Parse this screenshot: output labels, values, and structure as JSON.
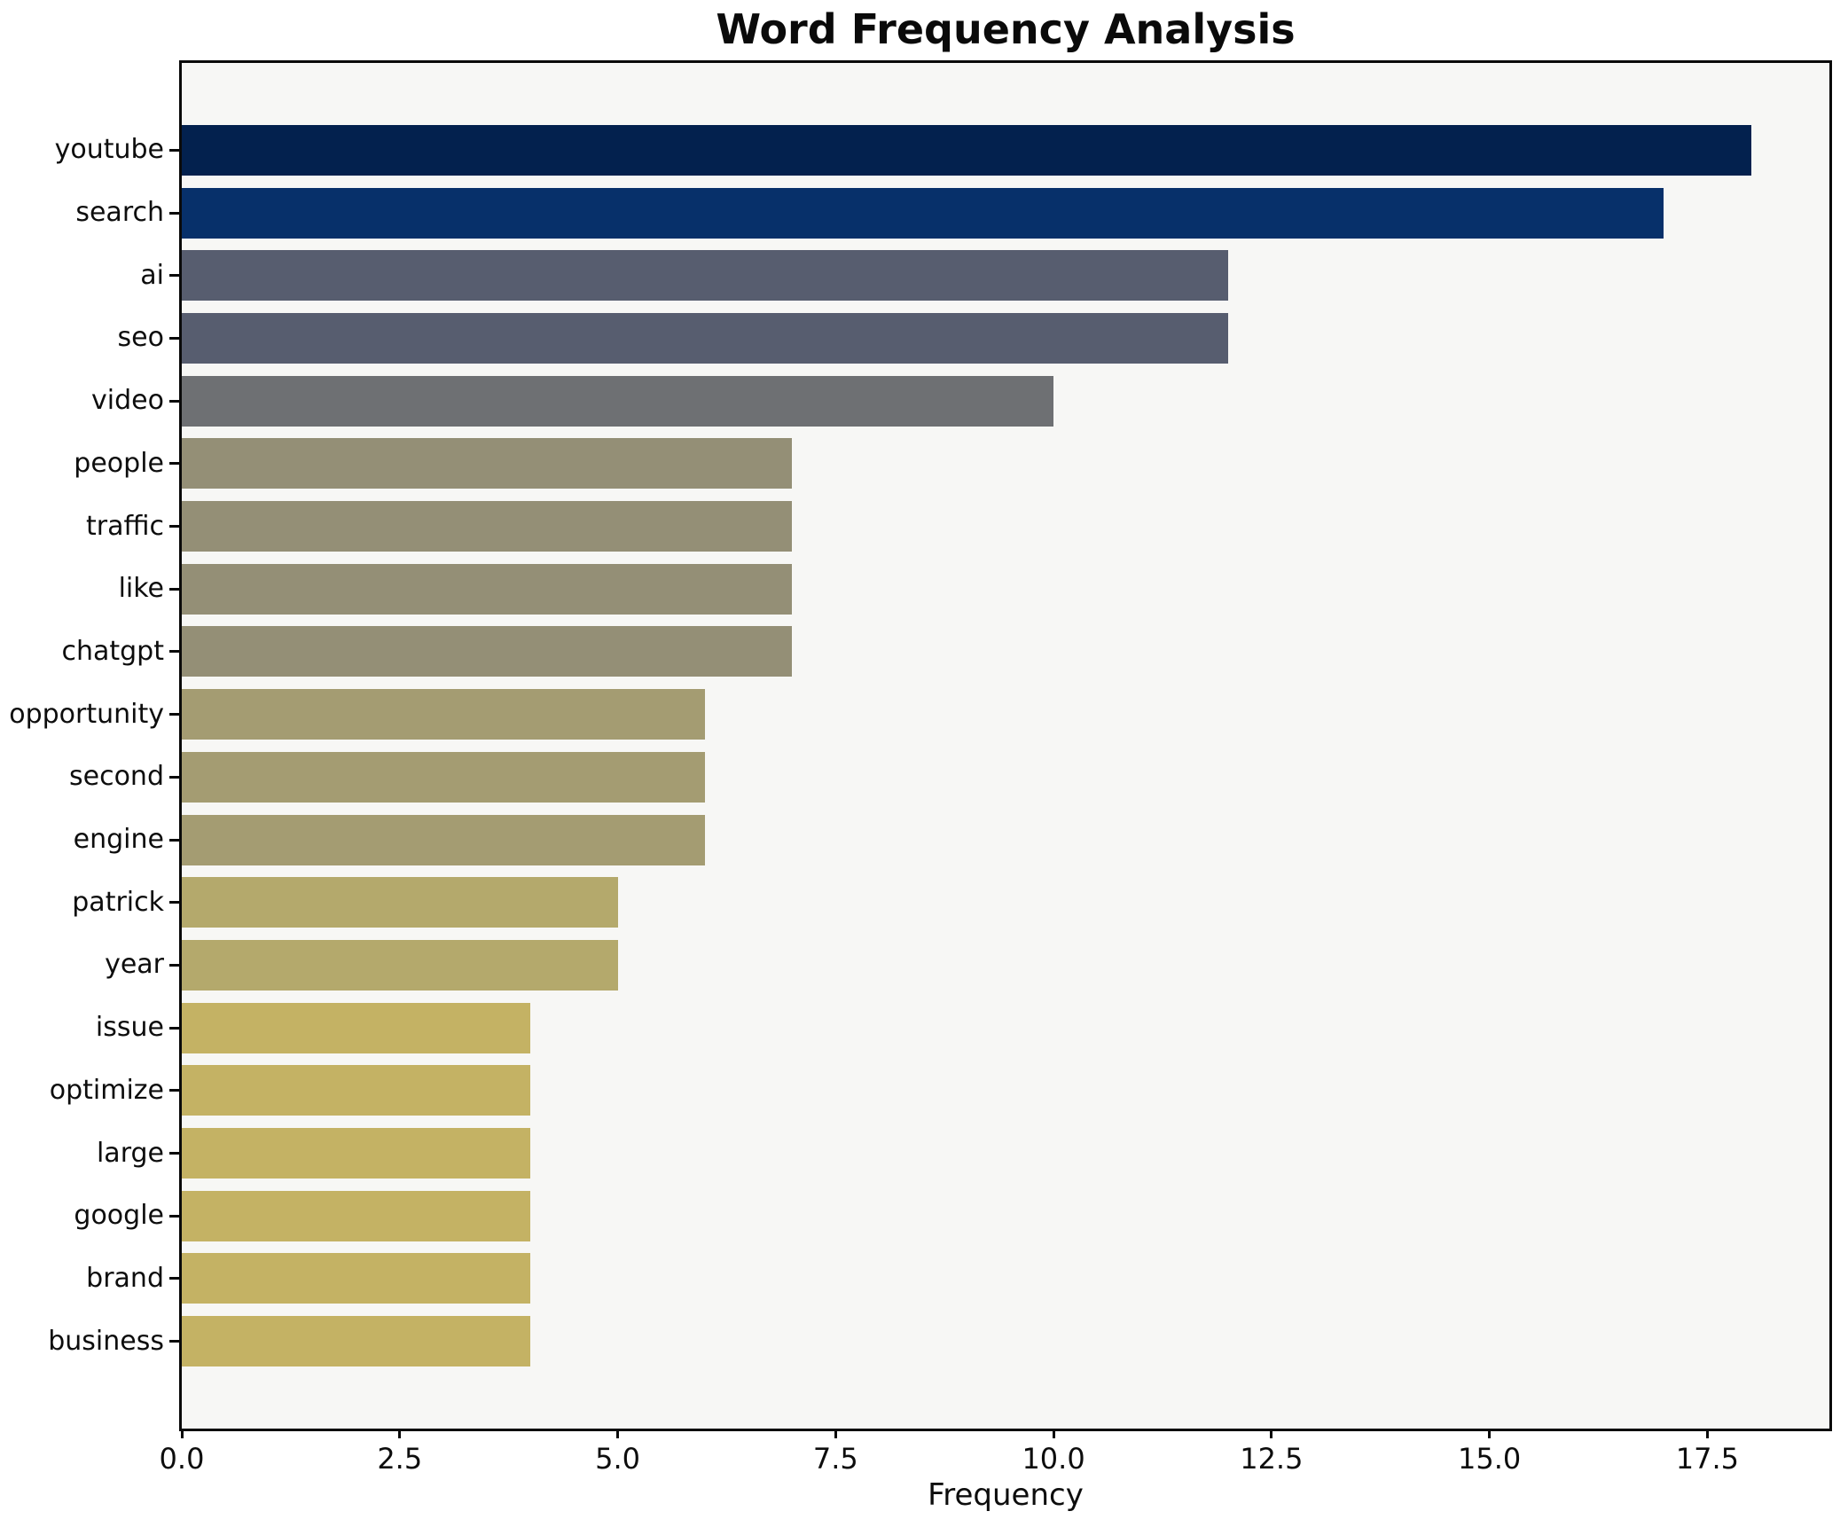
{
  "chart_data": {
    "type": "bar",
    "orientation": "horizontal",
    "title": "Word Frequency Analysis",
    "xlabel": "Frequency",
    "ylabel": "",
    "categories": [
      "youtube",
      "search",
      "ai",
      "seo",
      "video",
      "people",
      "traffic",
      "like",
      "chatgpt",
      "opportunity",
      "second",
      "engine",
      "patrick",
      "year",
      "issue",
      "optimize",
      "large",
      "google",
      "brand",
      "business"
    ],
    "values": [
      18,
      17,
      12,
      12,
      10,
      7,
      7,
      7,
      7,
      6,
      6,
      6,
      5,
      5,
      4,
      4,
      4,
      4,
      4,
      4
    ],
    "bar_colors": [
      "#03214e",
      "#07306a",
      "#575d6f",
      "#575d6f",
      "#6e7073",
      "#948f76",
      "#948f76",
      "#948f76",
      "#948f76",
      "#a49c72",
      "#a49c72",
      "#a49c72",
      "#b4a96c",
      "#b4a96c",
      "#c4b264",
      "#c4b264",
      "#c4b264",
      "#c4b264",
      "#c4b264",
      "#c4b264"
    ],
    "xlim": [
      0,
      18.9
    ],
    "x_ticks": [
      0,
      2.5,
      5,
      7.5,
      10,
      12.5,
      15,
      17.5
    ],
    "x_tick_labels": [
      "0.0",
      "2.5",
      "5.0",
      "7.5",
      "10.0",
      "12.5",
      "15.0",
      "17.5"
    ],
    "grid": false,
    "legend": null,
    "plot_background": "#f7f7f5",
    "figure_background": "#ffffff",
    "bar_edge": "none"
  }
}
